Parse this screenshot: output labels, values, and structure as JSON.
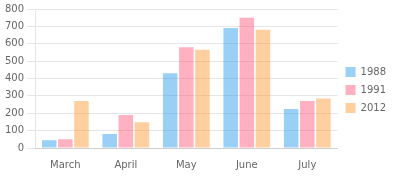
{
  "chart_data": {
    "type": "bar",
    "categories": [
      "March",
      "April",
      "May",
      "June",
      "July"
    ],
    "series": [
      {
        "name": "1988",
        "values": [
          45,
          80,
          430,
          690,
          225
        ]
      },
      {
        "name": "1991",
        "values": [
          50,
          190,
          580,
          750,
          270
        ]
      },
      {
        "name": "2012",
        "values": [
          270,
          148,
          565,
          680,
          285
        ]
      }
    ],
    "ylim": [
      0,
      800
    ],
    "yticks": [
      0,
      100,
      200,
      300,
      400,
      500,
      600,
      700,
      800
    ],
    "grid": true,
    "legend": "right"
  }
}
